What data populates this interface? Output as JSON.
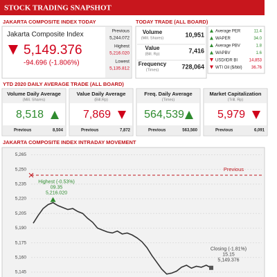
{
  "header": {
    "title": "STOCK TRADING SNAPSHOT"
  },
  "index_today": {
    "heading": "JAKARTA COMPOSITE INDEX TODAY",
    "name": "Jakarta Composite Index",
    "value": "5,149.376",
    "change": "-94.696 (-1.806%)",
    "trend": "down",
    "stats": [
      {
        "label": "Previous",
        "value": "5,244.072",
        "color": "#222222"
      },
      {
        "label": "Highest",
        "value": "5,216.020",
        "color": "#d0021b"
      },
      {
        "label": "Lowest",
        "value": "5,135.812",
        "color": "#d0021b"
      }
    ]
  },
  "today_trade": {
    "heading": "TODAY TRADE (ALL BOARD)",
    "rows": [
      {
        "label": "Volume",
        "unit": "(Mill. Shares)",
        "value": "10,951"
      },
      {
        "label": "Value",
        "unit": "(Bill. Rp)",
        "value": "7,416"
      },
      {
        "label": "Frequency",
        "unit": "(Times)",
        "value": "728,064"
      }
    ],
    "indicators": [
      {
        "label": "Average PER",
        "value": "11.4",
        "trend": "up"
      },
      {
        "label": "WAPER",
        "value": "34.0",
        "trend": "up"
      },
      {
        "label": "Average PBV",
        "value": "1.8",
        "trend": "up"
      },
      {
        "label": "WAPBV",
        "value": "1.6",
        "trend": "up"
      },
      {
        "label": "USD/IDR BI",
        "value": "14,853",
        "trend": "down"
      },
      {
        "label": "WTI Oil ($/bbl)",
        "value": "36.76",
        "trend": "down"
      }
    ]
  },
  "ytd": {
    "heading": "YTD 2020 DAILY AVERAGE TRADE (ALL BOARD)",
    "cards": [
      {
        "title": "Volume Daily Average",
        "unit": "(Mill. Shares)",
        "value": "8,518",
        "trend": "up",
        "previous_label": "Previous",
        "previous": "8,504"
      },
      {
        "title": "Value Daily Average",
        "unit": "(Bill.Rp)",
        "value": "7,869",
        "trend": "down",
        "previous_label": "Previous",
        "previous": "7,872"
      },
      {
        "title": "Freq. Daily Average",
        "unit": "(Times)",
        "value": "564,539",
        "trend": "up",
        "previous_label": "Previous",
        "previous": "563,560"
      },
      {
        "title": "Market Capitalization",
        "unit": "(Trill. Rp)",
        "value": "5,979",
        "trend": "down",
        "previous_label": "Previous",
        "previous": "6,091"
      }
    ]
  },
  "intraday": {
    "heading": "JAKARTA COMPOSITE INDEX INTRADAY MOVEMENT",
    "chart_data": {
      "type": "line",
      "color": "#333333",
      "grid": true,
      "ylim": [
        5140,
        5271
      ],
      "yticks": [
        {
          "value": 5145,
          "label": "5,145"
        },
        {
          "value": 5160,
          "label": "5,160"
        },
        {
          "value": 5175,
          "label": "5,175"
        },
        {
          "value": 5190,
          "label": "5,190"
        },
        {
          "value": 5205,
          "label": "5,205"
        },
        {
          "value": 5220,
          "label": "5,220"
        },
        {
          "value": 5235,
          "label": "5,235"
        },
        {
          "value": 5250,
          "label": "5,250"
        },
        {
          "value": 5265,
          "label": "5,265"
        }
      ],
      "values": [
        5195,
        5203,
        5210,
        5214,
        5216.02,
        5213,
        5211,
        5209,
        5210,
        5207,
        5205,
        5200,
        5196,
        5190,
        5188,
        5186,
        5185,
        5187,
        5184,
        5185,
        5183,
        5180,
        5176,
        5170,
        5162,
        5155,
        5148,
        5143,
        5144,
        5146,
        5150,
        5152,
        5149,
        5151,
        5150,
        5152,
        5149.376
      ],
      "reference": {
        "label": "Previous",
        "value": 5244.072,
        "color": "#c0161c"
      },
      "highest": {
        "label": "Highest (-0.53%)",
        "time": "09.35",
        "value": "5,216.020",
        "color": "#2e8b2e"
      },
      "closing": {
        "label": "Closing (-1.81%)",
        "time": "15.15",
        "value": "5,149.376",
        "color": "#444444"
      }
    }
  }
}
